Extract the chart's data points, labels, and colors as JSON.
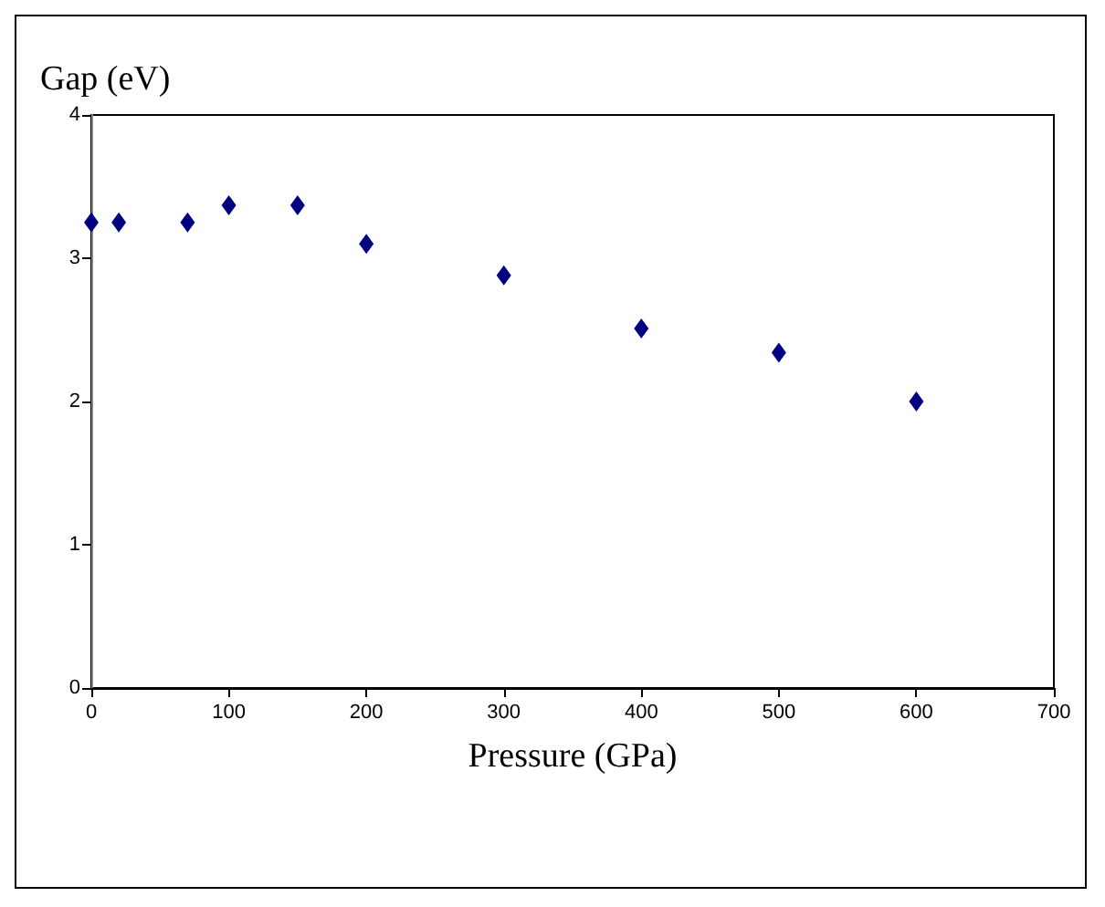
{
  "chart_data": {
    "type": "scatter",
    "xlabel": "Pressure (GPa)",
    "ylabel": "Gap (eV)",
    "x": [
      0,
      20,
      70,
      100,
      150,
      200,
      300,
      400,
      500,
      600
    ],
    "values": [
      3.25,
      3.25,
      3.25,
      3.37,
      3.37,
      3.1,
      2.88,
      2.51,
      2.34,
      2.0
    ],
    "color": "#000080",
    "marker": "diamond",
    "xlim": [
      0,
      700
    ],
    "xticks": [
      0,
      100,
      200,
      300,
      400,
      500,
      600,
      700
    ],
    "ylim": [
      0,
      4
    ],
    "yticks": [
      0,
      1,
      2,
      3,
      4
    ],
    "grid": false
  }
}
